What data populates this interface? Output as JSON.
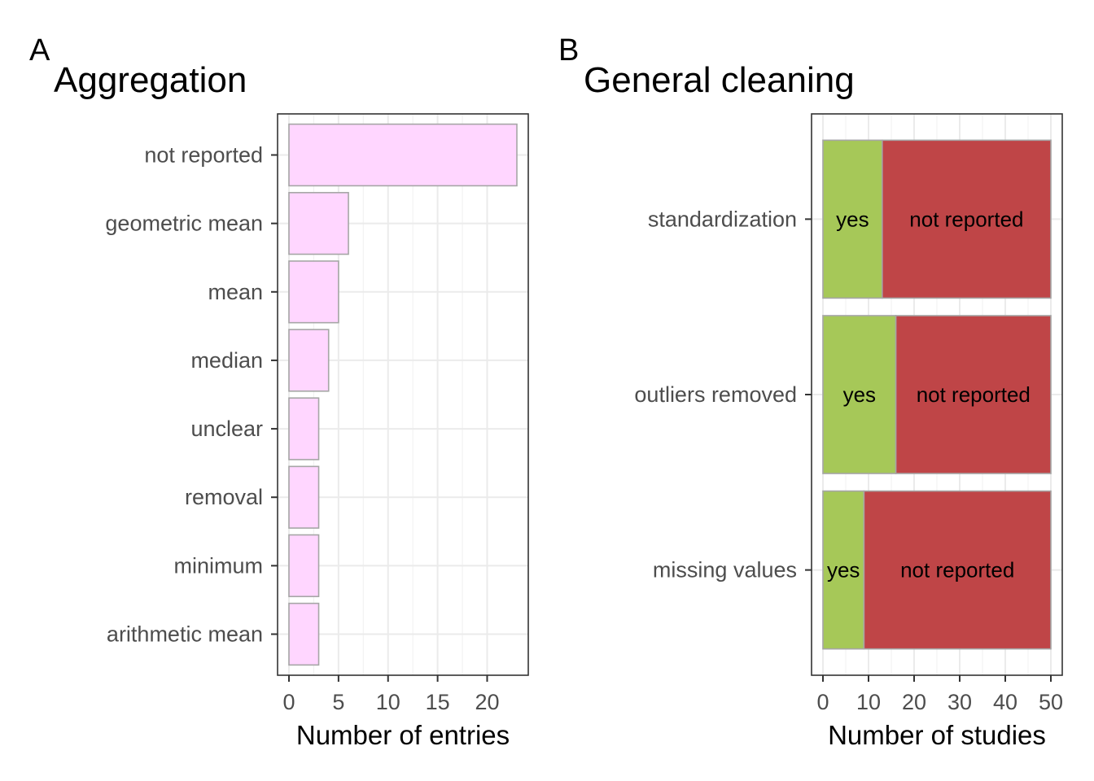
{
  "chart_data": [
    {
      "type": "bar",
      "orientation": "horizontal",
      "panel_label": "A",
      "title": "Aggregation",
      "xlabel": "Number of entries",
      "ylabel": "",
      "xlim": [
        0,
        23
      ],
      "xticks": [
        0,
        5,
        10,
        15,
        20
      ],
      "grid": true,
      "bar_color": "#FFD6FF",
      "categories": [
        "not reported",
        "geometric mean",
        "mean",
        "median",
        "unclear",
        "removal",
        "minimum",
        "arithmetic mean"
      ],
      "values": [
        23,
        6,
        5,
        4,
        3,
        3,
        3,
        3
      ]
    },
    {
      "type": "bar",
      "orientation": "horizontal",
      "stacked": true,
      "panel_label": "B",
      "title": "General cleaning",
      "xlabel": "Number of studies",
      "ylabel": "",
      "xlim": [
        0,
        50
      ],
      "xticks": [
        0,
        10,
        20,
        30,
        40,
        50
      ],
      "grid": true,
      "categories": [
        "standardization",
        "outliers removed",
        "missing values"
      ],
      "series": [
        {
          "name": "yes",
          "color": "#A6C858",
          "values": [
            13,
            16,
            9
          ]
        },
        {
          "name": "not reported",
          "color": "#BF4547",
          "values": [
            37,
            34,
            41
          ]
        }
      ]
    }
  ]
}
